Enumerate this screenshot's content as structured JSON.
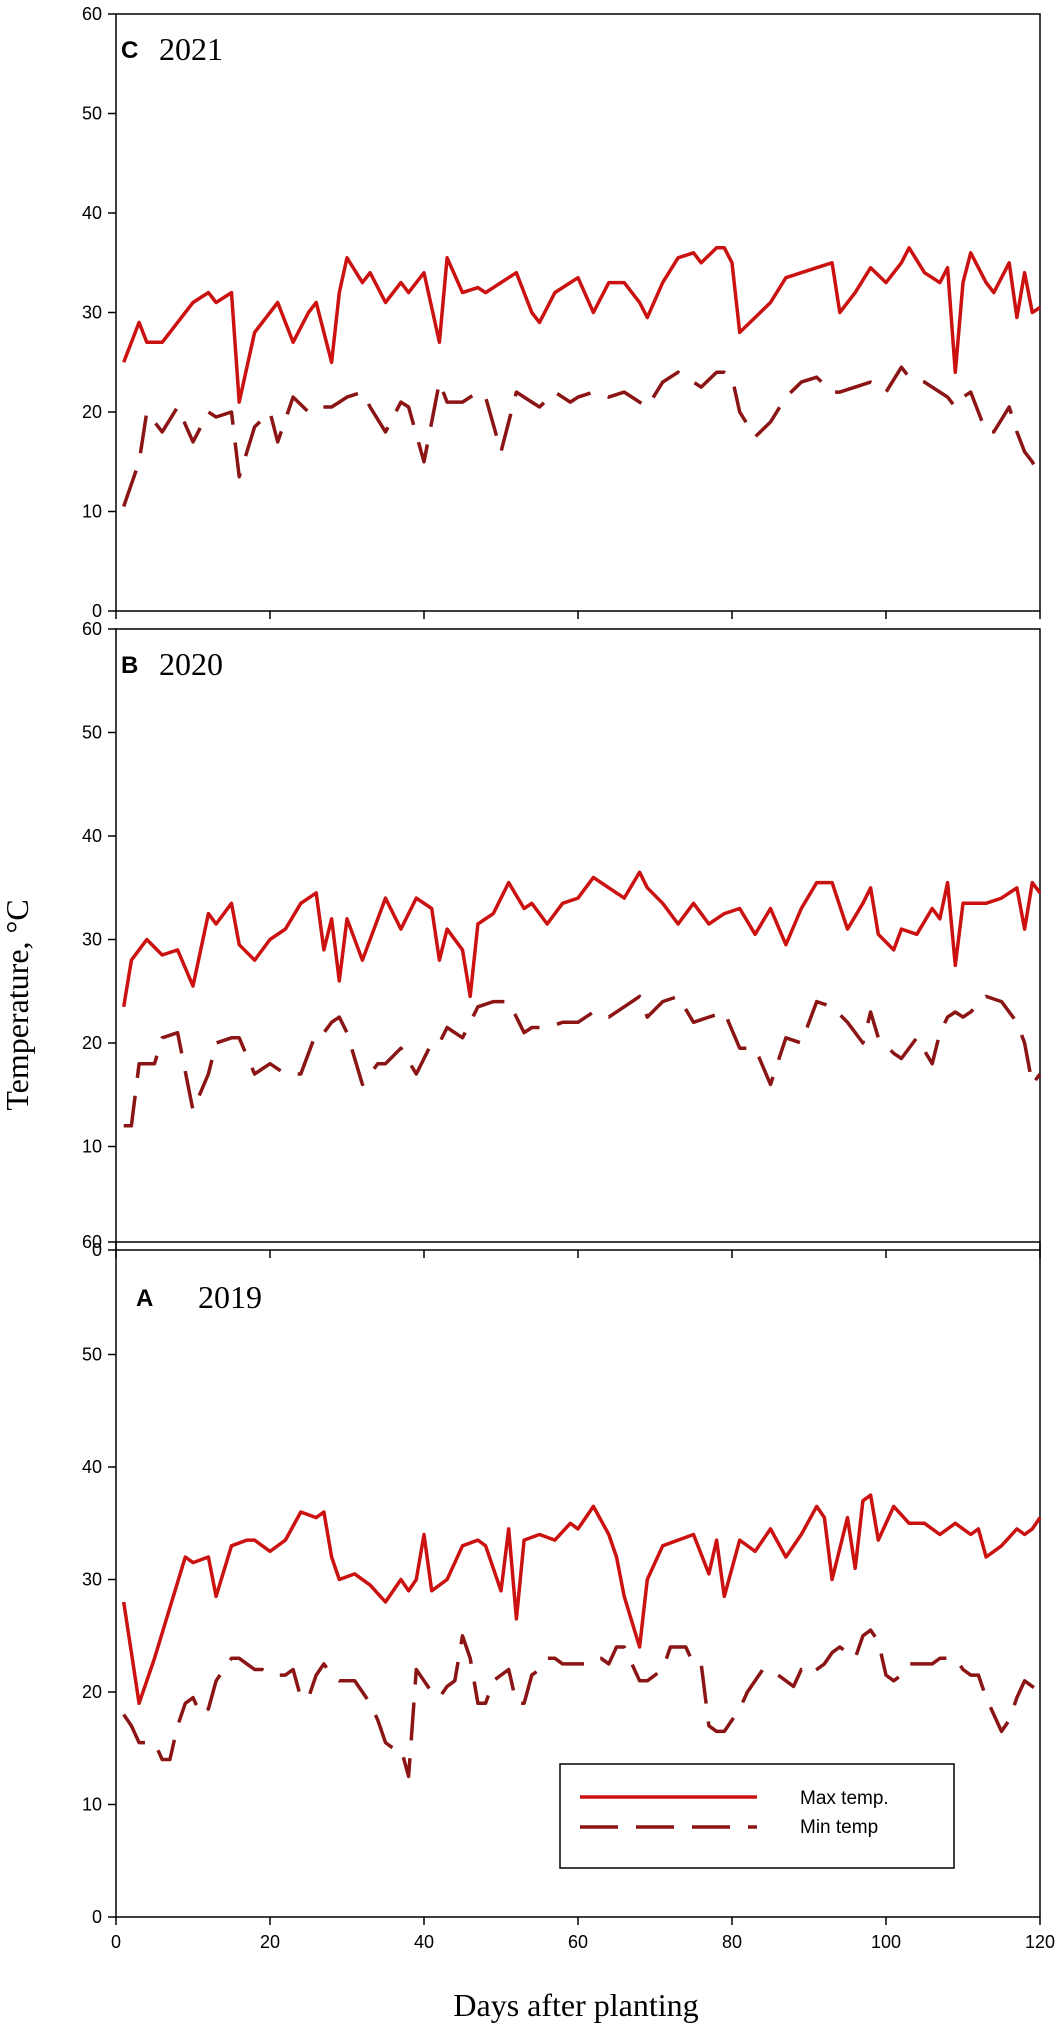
{
  "chart_data": {
    "type": "line",
    "xlabel": "Days after planting",
    "ylabel": "Temperature, °C",
    "xlim": [
      0,
      120
    ],
    "ylim": [
      0,
      60
    ],
    "x_ticks": [
      "0",
      "20",
      "40",
      "60",
      "80",
      "100",
      "120"
    ],
    "y_ticks": [
      "0",
      "10",
      "20",
      "30",
      "40",
      "50",
      "60"
    ],
    "grid": false,
    "legend": {
      "position": "bottom-right of panel A",
      "entries": [
        {
          "name": "Max temp.",
          "style": "solid"
        },
        {
          "name": "Min temp",
          "style": "dashed"
        }
      ]
    },
    "colors": {
      "max": "#cc1111",
      "min": "#8b1414"
    },
    "panels": [
      {
        "letter": "C",
        "year": "2021",
        "series": [
          {
            "name": "Max temp.",
            "x": [
              1,
              3,
              4,
              6,
              8,
              10,
              12,
              13,
              15,
              16,
              18,
              20,
              21,
              23,
              25,
              26,
              28,
              29,
              30,
              32,
              33,
              35,
              37,
              38,
              40,
              42,
              43,
              45,
              47,
              48,
              50,
              52,
              54,
              55,
              57,
              59,
              60,
              62,
              64,
              66,
              68,
              69,
              71,
              73,
              75,
              76,
              78,
              79,
              80,
              81,
              83,
              85,
              87,
              89,
              91,
              93,
              94,
              96,
              98,
              100,
              102,
              103,
              105,
              107,
              108,
              109,
              110,
              111,
              113,
              114,
              116,
              117,
              118,
              119,
              120
            ],
            "y": [
              25,
              29,
              27,
              27,
              29,
              31,
              32,
              31,
              32,
              21,
              28,
              30,
              31,
              27,
              30,
              31,
              25,
              32,
              35.5,
              33,
              34,
              31,
              33,
              32,
              34,
              27,
              35.5,
              32,
              32.5,
              32,
              33,
              34,
              30,
              29,
              32,
              33,
              33.5,
              30,
              33,
              33,
              31,
              29.5,
              33,
              35.5,
              36,
              35,
              36.5,
              36.5,
              35,
              28,
              29.5,
              31,
              33.5,
              34,
              34.5,
              35,
              30,
              32,
              34.5,
              33,
              35,
              36.5,
              34,
              33,
              34.5,
              24,
              33,
              36,
              33,
              32,
              35,
              29.5,
              34,
              30,
              30.5
            ]
          },
          {
            "name": "Min temp",
            "x": [
              1,
              3,
              4,
              6,
              8,
              10,
              12,
              13,
              15,
              16,
              18,
              20,
              21,
              23,
              25,
              26,
              28,
              29,
              30,
              32,
              33,
              35,
              37,
              38,
              40,
              42,
              43,
              45,
              47,
              48,
              50,
              52,
              54,
              55,
              57,
              59,
              60,
              62,
              64,
              66,
              68,
              69,
              71,
              73,
              75,
              76,
              78,
              79,
              80,
              81,
              83,
              85,
              87,
              89,
              91,
              93,
              94,
              96,
              98,
              100,
              102,
              103,
              105,
              107,
              108,
              109,
              110,
              111,
              113,
              114,
              116,
              117,
              118,
              119,
              120
            ],
            "y": [
              10.5,
              15,
              20,
              18,
              20.5,
              17,
              20,
              19.5,
              20,
              13.5,
              18.5,
              20,
              17,
              21.5,
              20,
              20.5,
              20.5,
              21,
              21.5,
              22,
              20.5,
              18,
              21,
              20.5,
              15,
              23,
              21,
              21,
              22,
              21.5,
              16,
              22,
              21,
              20.5,
              22,
              21,
              21.5,
              22,
              21.5,
              22,
              21,
              20.5,
              23,
              24,
              23,
              22.5,
              24,
              24,
              23.5,
              20,
              17.5,
              19,
              21.5,
              23,
              23.5,
              22,
              22,
              22.5,
              23,
              22,
              24.5,
              23.5,
              23,
              22,
              21.5,
              20.5,
              21.5,
              22,
              18,
              18,
              20.5,
              18,
              16,
              15,
              13.5
            ]
          }
        ]
      },
      {
        "letter": "B",
        "year": "2020",
        "series": [
          {
            "name": "Max temp.",
            "x": [
              1,
              2,
              4,
              6,
              8,
              10,
              12,
              13,
              15,
              16,
              18,
              20,
              22,
              24,
              26,
              27,
              28,
              29,
              30,
              32,
              34,
              35,
              37,
              39,
              41,
              42,
              43,
              45,
              46,
              47,
              49,
              51,
              53,
              54,
              56,
              58,
              60,
              62,
              64,
              66,
              68,
              69,
              71,
              73,
              75,
              77,
              79,
              81,
              83,
              85,
              87,
              89,
              91,
              93,
              95,
              97,
              98,
              99,
              101,
              102,
              104,
              106,
              107,
              108,
              109,
              110,
              111,
              113,
              115,
              117,
              118,
              119,
              120
            ],
            "y": [
              23.5,
              28,
              30,
              28.5,
              29,
              25.5,
              32.5,
              31.5,
              33.5,
              29.5,
              28,
              30,
              31,
              33.5,
              34.5,
              29,
              32,
              26,
              32,
              28,
              32,
              34,
              31,
              34,
              33,
              28,
              31,
              29,
              24.5,
              31.5,
              32.5,
              35.5,
              33,
              33.5,
              31.5,
              33.5,
              34,
              36,
              35,
              34,
              36.5,
              35,
              33.5,
              31.5,
              33.5,
              31.5,
              32.5,
              33,
              30.5,
              33,
              29.5,
              33,
              35.5,
              35.5,
              31,
              33.5,
              35,
              30.5,
              29,
              31,
              30.5,
              33,
              32,
              35.5,
              27.5,
              33.5,
              33.5,
              33.5,
              34,
              35,
              31,
              35.5,
              34.5
            ]
          },
          {
            "name": "Min temp",
            "x": [
              1,
              2,
              3,
              5,
              6,
              8,
              10,
              12,
              13,
              15,
              16,
              18,
              20,
              22,
              24,
              26,
              27,
              28,
              29,
              30,
              32,
              34,
              35,
              37,
              39,
              41,
              42,
              43,
              45,
              47,
              49,
              51,
              53,
              54,
              56,
              58,
              60,
              62,
              64,
              66,
              68,
              69,
              71,
              73,
              75,
              77,
              79,
              81,
              83,
              85,
              87,
              89,
              91,
              93,
              95,
              97,
              98,
              99,
              101,
              102,
              104,
              106,
              107,
              108,
              109,
              110,
              111,
              113,
              115,
              117,
              118,
              119,
              120
            ],
            "y": [
              12,
              12,
              18,
              18,
              20.5,
              21,
              13.5,
              17,
              20,
              20.5,
              20.5,
              17,
              18,
              17,
              17,
              21,
              21,
              22,
              22.5,
              21,
              16,
              18,
              18,
              19.5,
              17,
              20,
              20,
              21.5,
              20.5,
              23.5,
              24,
              24,
              21,
              21.5,
              21.5,
              22,
              22,
              23,
              22.5,
              23.5,
              24.5,
              22.5,
              24,
              24.5,
              22,
              22.5,
              23,
              19.5,
              19.5,
              16,
              20.5,
              20,
              24,
              23.5,
              22,
              20,
              23,
              20.5,
              19,
              18.5,
              20.5,
              18,
              21,
              22.5,
              23,
              22.5,
              23,
              24.5,
              24,
              22,
              20,
              16,
              17
            ]
          }
        ]
      },
      {
        "letter": "A",
        "year": "2019",
        "series": [
          {
            "name": "Max temp.",
            "x": [
              1,
              3,
              5,
              7,
              9,
              10,
              12,
              13,
              15,
              17,
              18,
              20,
              22,
              24,
              26,
              27,
              28,
              29,
              31,
              33,
              35,
              37,
              38,
              39,
              40,
              41,
              43,
              45,
              47,
              48,
              50,
              51,
              52,
              53,
              55,
              57,
              59,
              60,
              62,
              64,
              65,
              66,
              68,
              69,
              71,
              73,
              75,
              77,
              78,
              79,
              81,
              83,
              85,
              87,
              89,
              91,
              92,
              93,
              95,
              96,
              97,
              98,
              99,
              101,
              103,
              105,
              107,
              109,
              111,
              112,
              113,
              114,
              115,
              117,
              118,
              119,
              120
            ],
            "y": [
              28,
              19,
              23,
              27.5,
              32,
              31.5,
              32,
              28.5,
              33,
              33.5,
              33.5,
              32.5,
              33.5,
              36,
              35.5,
              36,
              32,
              30,
              30.5,
              29.5,
              28,
              30,
              29,
              30,
              34,
              29,
              30,
              33,
              33.5,
              33,
              29,
              34.5,
              26.5,
              33.5,
              34,
              33.5,
              35,
              34.5,
              36.5,
              34,
              32,
              28.5,
              24,
              30,
              33,
              33.5,
              34,
              30.5,
              33.5,
              28.5,
              33.5,
              32.5,
              34.5,
              32,
              34,
              36.5,
              35.5,
              30,
              35.5,
              31,
              37,
              37.5,
              33.5,
              36.5,
              35,
              35,
              34,
              35,
              34,
              34.5,
              32,
              32.5,
              33,
              34.5,
              34,
              34.5,
              35.5
            ]
          },
          {
            "name": "Min temp",
            "x": [
              1,
              2,
              3,
              4,
              5,
              6,
              7,
              8,
              9,
              10,
              11,
              12,
              13,
              14,
              15,
              16,
              17,
              18,
              19,
              20,
              21,
              22,
              23,
              24,
              25,
              26,
              27,
              28,
              29,
              30,
              31,
              32,
              33,
              34,
              35,
              36,
              37,
              38,
              39,
              40,
              41,
              42,
              43,
              44,
              45,
              46,
              47,
              48,
              49,
              50,
              51,
              52,
              53,
              54,
              55,
              56,
              57,
              58,
              59,
              60,
              61,
              62,
              63,
              64,
              65,
              66,
              67,
              68,
              69,
              70,
              71,
              72,
              73,
              74,
              75,
              76,
              77,
              78,
              79,
              80,
              81,
              82,
              83,
              84,
              85,
              86,
              87,
              88,
              89,
              90,
              91,
              92,
              93,
              94,
              95,
              96,
              97,
              98,
              99,
              100,
              101,
              102,
              103,
              104,
              105,
              106,
              107,
              108,
              109,
              110,
              111,
              112,
              113,
              114,
              115,
              116,
              117,
              118,
              119,
              120
            ],
            "y": [
              18,
              17,
              15.5,
              15.5,
              15.5,
              14,
              14,
              17,
              19,
              19.5,
              18,
              18.5,
              21,
              22,
              23,
              23,
              22.5,
              22,
              22,
              21.5,
              21.5,
              21.5,
              22,
              19.5,
              19.5,
              21.5,
              22.5,
              21.5,
              21,
              21,
              21,
              20,
              19,
              17.5,
              15.5,
              15,
              15,
              12.5,
              22,
              21,
              20,
              19.5,
              20.5,
              21,
              25,
              23,
              19,
              19,
              21,
              21.5,
              22,
              19,
              19,
              21.5,
              22,
              23,
              23,
              22.5,
              22.5,
              22.5,
              22.5,
              23,
              23,
              22.5,
              24,
              24,
              22.5,
              21,
              21,
              21.5,
              22,
              24,
              24,
              24,
              22.5,
              22.5,
              17,
              16.5,
              16.5,
              17.5,
              18.5,
              20,
              21,
              22,
              22,
              21.5,
              21,
              20.5,
              22,
              21.5,
              22,
              22.5,
              23.5,
              24,
              23.5,
              23,
              25,
              25.5,
              24.5,
              21.5,
              21,
              21.5,
              22.5,
              22.5,
              22.5,
              22.5,
              23,
              23,
              23,
              22,
              21.5,
              21.5,
              19.5,
              18,
              16.5,
              17.5,
              19.5,
              21,
              20.5,
              20
            ]
          }
        ]
      }
    ]
  }
}
